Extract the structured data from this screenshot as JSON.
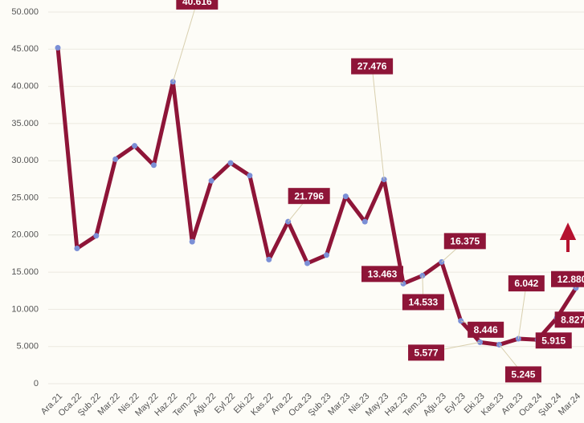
{
  "chart_data": {
    "type": "line",
    "categories": [
      "Ara.21",
      "Oca.22",
      "Şub.22",
      "Mar.22",
      "Nis.22",
      "May.22",
      "Haz.22",
      "Tem.22",
      "Ağu.22",
      "Eyl.22",
      "Eki.22",
      "Kas.22",
      "Ara.22",
      "Oca.23",
      "Şub.23",
      "Mar.23",
      "Nis.23",
      "May.23",
      "Haz.23",
      "Tem.23",
      "Ağu.23",
      "Eyl.23",
      "Eki.23",
      "Kas.23",
      "Ara.23",
      "Oca.24",
      "Şub.24",
      "Mar.24"
    ],
    "series": [
      {
        "color": "#8e1538",
        "values": [
          45200,
          18200,
          19900,
          30200,
          32000,
          29400,
          40616,
          19100,
          27300,
          29700,
          28000,
          16700,
          21796,
          16200,
          17300,
          25200,
          21800,
          27476,
          13463,
          14533,
          16375,
          8446,
          5577,
          5245,
          6042,
          5915,
          8827,
          12880
        ],
        "value_labels": [
          null,
          null,
          null,
          null,
          null,
          null,
          "40.616",
          null,
          null,
          null,
          null,
          null,
          "21.796",
          null,
          null,
          null,
          null,
          "27.476",
          "13.463",
          "14.533",
          "16.375",
          "8.446",
          "5.577",
          "5.245",
          "6.042",
          "5.915",
          "8.827",
          "12.880"
        ]
      }
    ],
    "ylim": [
      0,
      50000
    ],
    "yticks": [
      0,
      {
        "value": 5000,
        "label": "5.000"
      },
      {
        "value": 10000,
        "label": "10.000"
      },
      {
        "value": 15000,
        "label": "15.000"
      },
      {
        "value": 20000,
        "label": "20.000"
      },
      {
        "value": 25000,
        "label": "25.000"
      },
      {
        "value": 30000,
        "label": "30.000"
      },
      {
        "value": 35000,
        "label": "35.000"
      },
      {
        "value": 40000,
        "label": "40.000"
      },
      {
        "value": 45000,
        "label": "45.000"
      },
      {
        "value": 50000,
        "label": "50.000"
      }
    ],
    "grid": true
  }
}
